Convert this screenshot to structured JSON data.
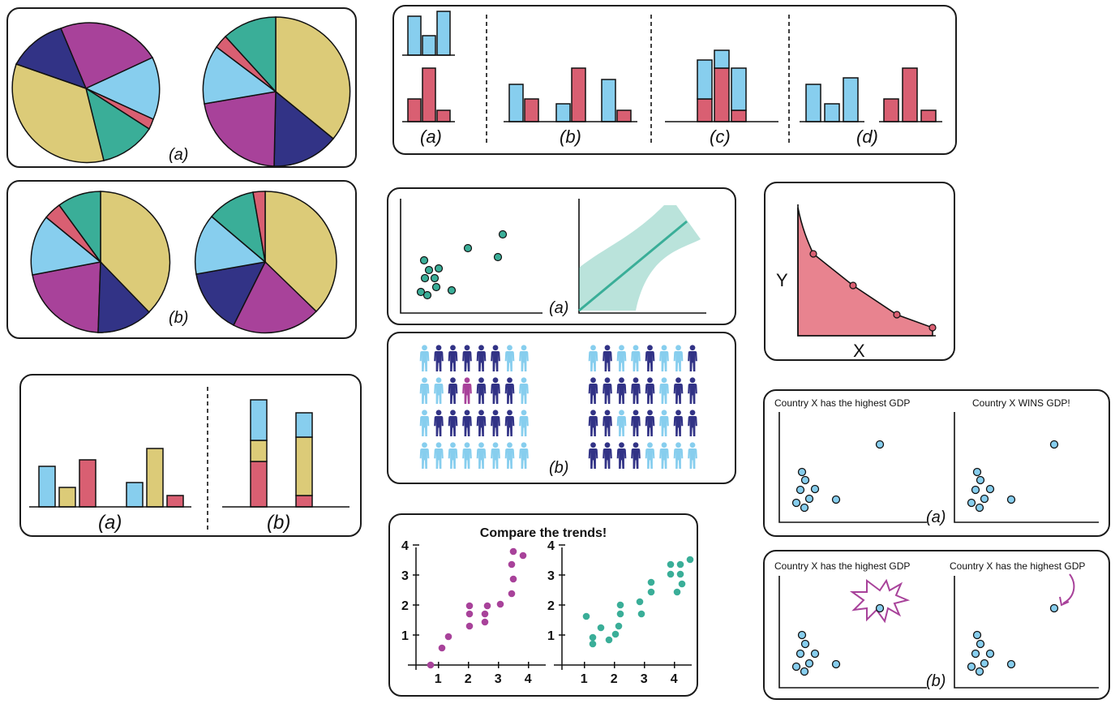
{
  "colors": {
    "blue": "#87ceee",
    "red": "#d95f72",
    "yellow": "#dccb78",
    "navy": "#323386",
    "magenta": "#a8429a",
    "teal": "#3aae98",
    "gdp_dot": "#87ceee",
    "area": "#e8838f",
    "outline": "#1b1b1b"
  },
  "icons": [
    "person-icon",
    "starburst-icon",
    "curved-arrow-icon"
  ],
  "pies": {
    "a_label": "(a)",
    "b_label": "(b)"
  },
  "bars_top": {
    "labels": [
      "(a)",
      "(b)",
      "(c)",
      "(d)"
    ]
  },
  "bars_bottom": {
    "labels": [
      "(a)",
      "(b)"
    ]
  },
  "scatter": {
    "label": "(a)"
  },
  "people": {
    "label": "(b)"
  },
  "area": {
    "y_label": "Y",
    "x_label": "X"
  },
  "trends": {
    "title": "Compare the trends!",
    "y_ticks": [
      "1",
      "2",
      "3",
      "4"
    ],
    "x_ticks": [
      "1",
      "2",
      "3",
      "4"
    ]
  },
  "gdp_a": {
    "left_title": "Country X has the highest GDP",
    "right_title": "Country X WINS GDP!",
    "label": "(a)"
  },
  "gdp_b": {
    "left_title": "Country X has the highest GDP",
    "right_title": "Country X has the highest GDP",
    "label": "(b)"
  }
}
